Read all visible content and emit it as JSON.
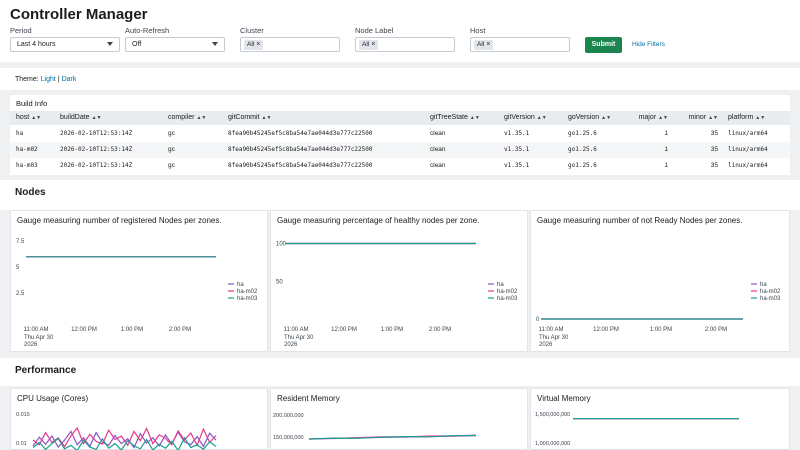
{
  "header": {
    "title": "Controller Manager",
    "filters": {
      "period": {
        "label": "Period",
        "value": "Last 4 hours"
      },
      "auto_refresh": {
        "label": "Auto-Refresh",
        "value": "Off"
      },
      "cluster": {
        "label": "Cluster",
        "chip": "All"
      },
      "node_label": {
        "label": "Node Label",
        "chip": "All"
      },
      "host": {
        "label": "Host",
        "chip": "All"
      }
    },
    "submit_label": "Submit",
    "hide_filters_label": "Hide Filters"
  },
  "theme": {
    "label": "Theme:",
    "light": "Light",
    "separator": "|",
    "dark": "Dark"
  },
  "build_info": {
    "title": "Build Info",
    "columns": [
      "host",
      "buildDate",
      "compiler",
      "gitCommit",
      "gitTreeState",
      "gitVersion",
      "goVersion",
      "major",
      "minor",
      "platform"
    ],
    "rows": [
      [
        "ha",
        "2026-02-10T12:53:14Z",
        "gc",
        "8fea90b45245ef5c8ba54e7ae044d3e777c22500",
        "clean",
        "v1.35.1",
        "go1.25.6",
        "1",
        "35",
        "linux/arm64"
      ],
      [
        "ha-m02",
        "2026-02-10T12:53:14Z",
        "gc",
        "8fea90b45245ef5c8ba54e7ae044d3e777c22500",
        "clean",
        "v1.35.1",
        "go1.25.6",
        "1",
        "35",
        "linux/arm64"
      ],
      [
        "ha-m03",
        "2026-02-10T12:53:14Z",
        "gc",
        "8fea90b45245ef5c8ba54e7ae044d3e777c22500",
        "clean",
        "v1.35.1",
        "go1.25.6",
        "1",
        "35",
        "linux/arm64"
      ]
    ]
  },
  "nodes_section": {
    "title": "Nodes"
  },
  "performance_section": {
    "title": "Performance"
  },
  "colors": {
    "ha": "#8b54c8",
    "ha-m02": "#e8388a",
    "ha-m03": "#1a9e8f"
  },
  "chart_data": [
    {
      "type": "line",
      "title": "Gauge measuring number of registered Nodes per zones.",
      "y_ticks": [
        "7.5",
        "5",
        "2.5"
      ],
      "ylim": [
        0,
        8
      ],
      "x_ticks": [
        "11:00 AM",
        "12:00 PM",
        "1:00 PM",
        "2:00 PM"
      ],
      "x_sub": [
        "Thu Apr 30",
        "2026"
      ],
      "series": [
        {
          "name": "ha",
          "values": [
            6,
            6
          ]
        },
        {
          "name": "ha-m02",
          "values": [
            6,
            6
          ]
        },
        {
          "name": "ha-m03",
          "values": [
            6,
            6
          ]
        }
      ],
      "legend": "right"
    },
    {
      "type": "line",
      "title": "Gauge measuring percentage of healthy nodes per zone.",
      "y_ticks": [
        "100",
        "50"
      ],
      "ylim": [
        0,
        110
      ],
      "x_ticks": [
        "11:00 AM",
        "12:00 PM",
        "1:00 PM",
        "2:00 PM"
      ],
      "x_sub": [
        "Thu Apr 30",
        "2026"
      ],
      "series": [
        {
          "name": "ha",
          "values": [
            100,
            100
          ]
        },
        {
          "name": "ha-m02",
          "values": [
            100,
            100
          ]
        },
        {
          "name": "ha-m03",
          "values": [
            100,
            100
          ]
        }
      ],
      "legend": "right"
    },
    {
      "type": "line",
      "title": "Gauge measuring number of not Ready Nodes per zones.",
      "y_ticks": [
        "0"
      ],
      "ylim": [
        0,
        1
      ],
      "x_ticks": [
        "11:00 AM",
        "12:00 PM",
        "1:00 PM",
        "2:00 PM"
      ],
      "x_sub": [
        "Thu Apr 30",
        "2026"
      ],
      "series": [
        {
          "name": "ha",
          "values": [
            0,
            0
          ]
        },
        {
          "name": "ha-m02",
          "values": [
            0,
            0
          ]
        },
        {
          "name": "ha-m03",
          "values": [
            0,
            0
          ]
        }
      ],
      "legend": "right"
    },
    {
      "type": "line",
      "title": "CPU Usage (Cores)",
      "y_ticks": [
        "0.015",
        "0.01"
      ],
      "series": [
        {
          "name": "ha",
          "values": [
            0.0095,
            0.011,
            0.0098,
            0.0112,
            0.0093,
            0.0105,
            0.012,
            0.0097,
            0.0109,
            0.0094,
            0.0118,
            0.0101,
            0.0096,
            0.0113,
            0.0099,
            0.0107,
            0.0092,
            0.0116,
            0.01,
            0.0109,
            0.0095,
            0.0114,
            0.0098,
            0.0119,
            0.0102,
            0.0097,
            0.0111,
            0.0094,
            0.0117,
            0.0105
          ]
        },
        {
          "name": "ha-m02",
          "values": [
            0.0105,
            0.0097,
            0.0118,
            0.0101,
            0.0109,
            0.0094,
            0.0112,
            0.0126,
            0.0099,
            0.0115,
            0.0103,
            0.0098,
            0.0122,
            0.0106,
            0.0112,
            0.0096,
            0.012,
            0.0104,
            0.0125,
            0.0099,
            0.0114,
            0.0108,
            0.0097,
            0.0121,
            0.0105,
            0.0117,
            0.0096,
            0.0124,
            0.0101,
            0.0113
          ]
        },
        {
          "name": "ha-m03",
          "values": [
            0.0092,
            0.0101,
            0.0089,
            0.0099,
            0.0108,
            0.009,
            0.0096,
            0.0087,
            0.0105,
            0.0093,
            0.0089,
            0.0107,
            0.0091,
            0.0099,
            0.0088,
            0.0104,
            0.0095,
            0.009,
            0.0106,
            0.0088,
            0.0098,
            0.0091,
            0.0103,
            0.0087,
            0.0109,
            0.0092,
            0.0097,
            0.0089,
            0.0102,
            0.0094
          ]
        }
      ]
    },
    {
      "type": "line",
      "title": "Resident Memory",
      "y_ticks": [
        "200,000,000",
        "150,000,000"
      ],
      "series": [
        {
          "name": "ha",
          "values": [
            145000000,
            147000000,
            148000000,
            149000000,
            150000000,
            151000000,
            152000000,
            153000000
          ]
        },
        {
          "name": "ha-m02",
          "values": [
            146000000,
            146500000,
            148500000,
            150500000,
            150000000,
            152000000,
            152500000,
            154000000
          ]
        },
        {
          "name": "ha-m03",
          "values": [
            145500000,
            147500000,
            147000000,
            149500000,
            151000000,
            150500000,
            153000000,
            153500000
          ]
        }
      ]
    },
    {
      "type": "line",
      "title": "Virtual Memory",
      "y_ticks": [
        "1,500,000,000",
        "1,000,000,000"
      ],
      "series": [
        {
          "name": "ha",
          "values": [
            1420000000,
            1420000000
          ]
        },
        {
          "name": "ha-m02",
          "values": [
            1420000000,
            1420000000
          ]
        },
        {
          "name": "ha-m03",
          "values": [
            1420000000,
            1420000000
          ]
        }
      ]
    }
  ]
}
